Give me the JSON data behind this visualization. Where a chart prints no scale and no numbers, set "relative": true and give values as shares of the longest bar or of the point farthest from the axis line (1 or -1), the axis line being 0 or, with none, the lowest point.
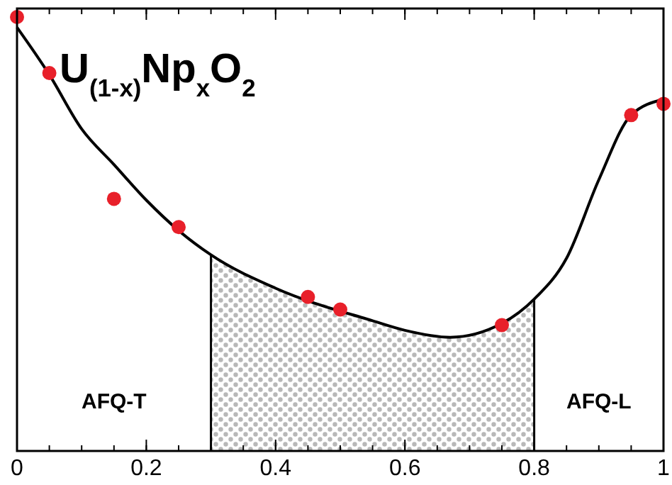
{
  "chart_data": {
    "type": "scatter",
    "title": "U$_{(1-x)}$Np$_{x}$O$_{2}$",
    "relative": true,
    "xlim": [
      0,
      1
    ],
    "xticks": [
      0,
      0.2,
      0.4,
      0.6,
      0.8,
      {
        "value": 1,
        "label": "1"
      }
    ],
    "series": [
      {
        "type": "area",
        "color": "#b8b8b8",
        "x": [
          0.3,
          0.4,
          0.5,
          0.6,
          0.67,
          0.75,
          0.8
        ],
        "values": [
          0.452,
          0.375,
          0.327,
          0.278,
          0.262,
          0.294,
          0.35
        ]
      },
      {
        "type": "line",
        "color": "#000000",
        "marker": "none",
        "x": [
          0,
          0.05,
          0.1,
          0.15,
          0.2,
          0.25,
          0.3,
          0.4,
          0.55,
          0.6,
          0.67,
          0.75,
          0.8,
          0.85,
          0.9,
          0.95,
          1
        ],
        "values": [
          0.976,
          0.867,
          0.742,
          0.66,
          0.578,
          0.508,
          0.452,
          0.375,
          0.3,
          0.278,
          0.262,
          0.294,
          0.35,
          0.444,
          0.625,
          0.774,
          0.81
        ]
      },
      {
        "color": "#e8202a",
        "marker": "circle",
        "x": [
          0,
          0.05,
          0.15,
          0.25,
          0.45,
          0.5,
          0.75,
          0.95,
          1
        ],
        "values": [
          1,
          0.871,
          0.581,
          0.516,
          0.355,
          0.326,
          0.29,
          0.774,
          0.8
        ]
      }
    ],
    "annotations": [
      "AFQ-T",
      "AFQ-L"
    ]
  }
}
